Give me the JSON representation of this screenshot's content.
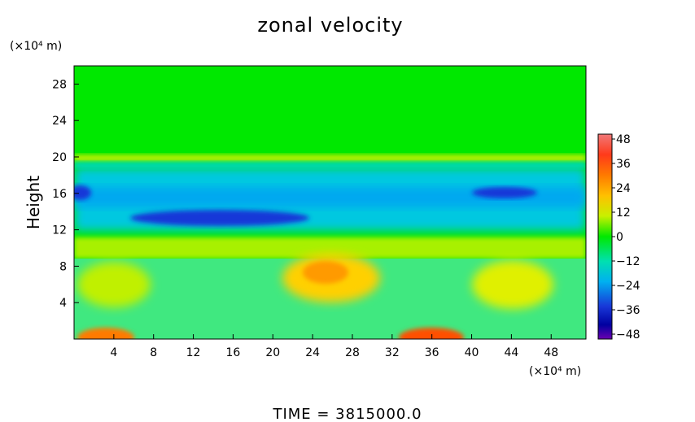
{
  "chart_data": {
    "type": "heatmap",
    "title": "zonal velocity",
    "ylabel": "Height",
    "xunit": "(×10⁴ m)",
    "yunit": "(×10⁴ m)",
    "footer": "TIME = 3815000.0",
    "xlim": [
      0,
      51.5
    ],
    "ylim": [
      0,
      30
    ],
    "xticks": [
      4,
      8,
      12,
      16,
      20,
      24,
      28,
      32,
      36,
      40,
      44,
      48
    ],
    "yticks": [
      4,
      8,
      12,
      16,
      20,
      24,
      28
    ],
    "colorbar": {
      "ticks": [
        48,
        36,
        24,
        12,
        0,
        -12,
        -24,
        -36,
        -48
      ],
      "tick_labels": [
        "48",
        "36",
        "24",
        "12",
        "0",
        "−12",
        "−24",
        "−36",
        "−48"
      ],
      "range": [
        -48,
        48
      ]
    },
    "field_features": [
      {
        "x": 25,
        "y": 8,
        "value": 30,
        "note": "positive maximum aloft"
      },
      {
        "x": 36,
        "y": 0.5,
        "value": 38,
        "note": "surface maximum"
      },
      {
        "x": 3.5,
        "y": 0.5,
        "value": 34,
        "note": "surface maximum"
      },
      {
        "x": 18,
        "y": 13.5,
        "value": -40,
        "note": "jet core"
      },
      {
        "x": 44,
        "y": 16,
        "value": -38,
        "note": "negative band"
      },
      {
        "x": 0.5,
        "y": 16,
        "value": -36,
        "note": "negative band"
      },
      {
        "x": 44,
        "y": 6,
        "value": 20,
        "note": "positive lobe"
      },
      {
        "x": 4,
        "y": 6,
        "value": 14,
        "note": "positive lobe"
      }
    ]
  }
}
